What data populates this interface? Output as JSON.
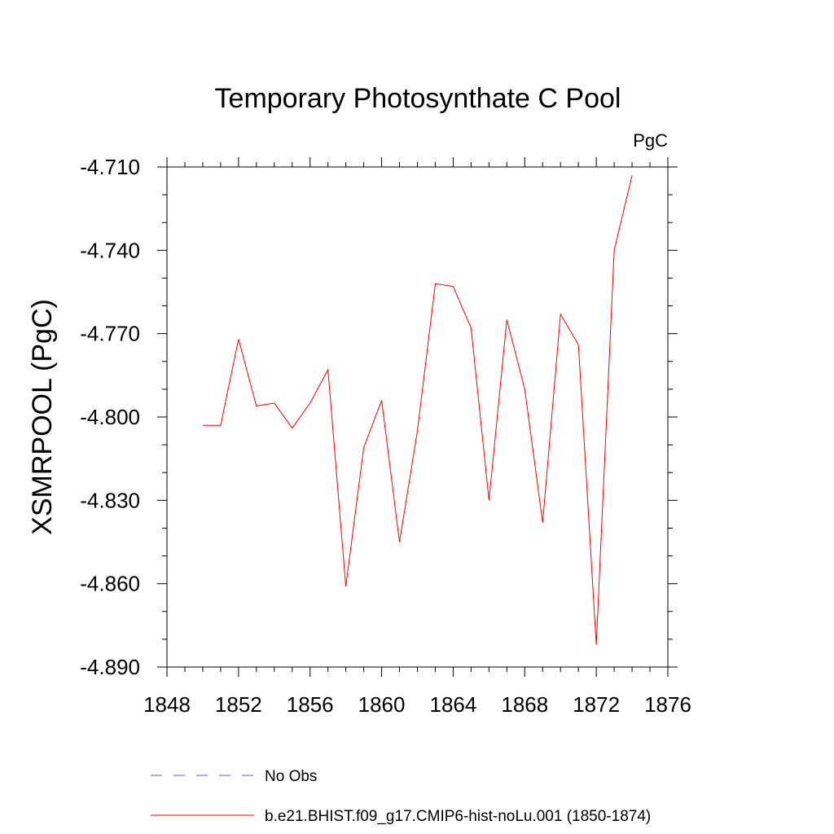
{
  "chart_data": {
    "type": "line",
    "title": "Temporary Photosynthate C Pool",
    "units_label": "PgC",
    "ylabel": "XSMRPOOL  (PgC)",
    "xlabel": "",
    "xlim": [
      1848,
      1876
    ],
    "ylim": [
      -4.89,
      -4.71
    ],
    "x_ticks": [
      1848,
      1852,
      1856,
      1860,
      1864,
      1868,
      1872,
      1876
    ],
    "x_tick_labels": [
      "1848",
      "1852",
      "1856",
      "1860",
      "1864",
      "1868",
      "1872",
      "1876"
    ],
    "y_ticks": [
      -4.89,
      -4.86,
      -4.83,
      -4.8,
      -4.77,
      -4.74,
      -4.71
    ],
    "y_tick_labels": [
      "-4.890",
      "-4.860",
      "-4.830",
      "-4.800",
      "-4.770",
      "-4.740",
      "-4.710"
    ],
    "grid": false,
    "legend_position": "bottom",
    "series": [
      {
        "name": "b.e21.BHIST.f09_g17.CMIP6-hist-noLu.001 (1850-1874)",
        "color": "#ff0000",
        "style": "solid",
        "x": [
          1850,
          1851,
          1852,
          1853,
          1854,
          1855,
          1856,
          1857,
          1858,
          1859,
          1860,
          1861,
          1862,
          1863,
          1864,
          1865,
          1866,
          1867,
          1868,
          1869,
          1870,
          1871,
          1872,
          1873,
          1874
        ],
        "y": [
          -4.803,
          -4.803,
          -4.772,
          -4.796,
          -4.795,
          -4.804,
          -4.795,
          -4.783,
          -4.861,
          -4.811,
          -4.794,
          -4.845,
          -4.805,
          -4.752,
          -4.753,
          -4.768,
          -4.83,
          -4.765,
          -4.79,
          -4.838,
          -4.763,
          -4.774,
          -4.882,
          -4.74,
          -4.713
        ]
      }
    ],
    "legend": [
      {
        "label": "No Obs",
        "color": "#6a5acd",
        "style": "dashed"
      },
      {
        "label": "b.e21.BHIST.f09_g17.CMIP6-hist-noLu.001 (1850-1874)",
        "color": "#ff0000",
        "style": "solid"
      }
    ]
  }
}
